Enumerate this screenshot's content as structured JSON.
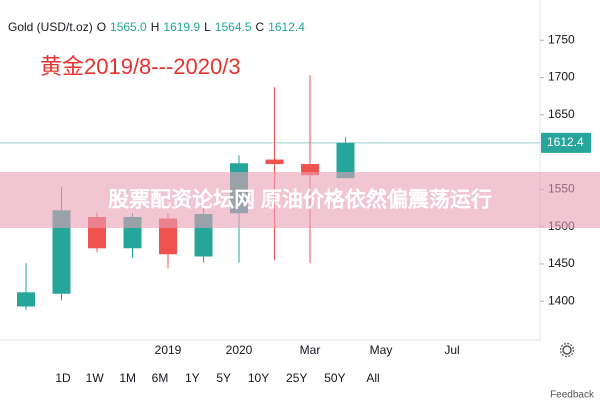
{
  "chart_data": {
    "type": "candlestick",
    "symbol": "Gold (USD/t.oz)",
    "header": {
      "o_key": "O",
      "open": "1565.0",
      "h_key": "H",
      "high": "1619.9",
      "l_key": "L",
      "low": "1564.5",
      "c_key": "C",
      "close": "1612.4"
    },
    "annotation": "黄金2019/8---2020/3",
    "watermark": "股票配资论坛网 原油价格依然偏震荡运行",
    "categories": [
      null,
      null,
      null,
      null,
      "2019",
      null,
      "2020",
      null,
      "Mar",
      null,
      "May",
      null,
      "Jul"
    ],
    "open": [
      1393,
      1410,
      1513,
      1471,
      1511,
      1460,
      1518,
      1590,
      1584,
      1565,
      null,
      null,
      null
    ],
    "high": [
      1451,
      1553,
      1519,
      1518,
      1518,
      1525,
      1596,
      1687,
      1703,
      1619.9,
      null,
      null,
      null
    ],
    "low": [
      1388,
      1401,
      1466,
      1458,
      1444,
      1452,
      1452,
      1455,
      1451,
      1564.5,
      null,
      null,
      null
    ],
    "close": [
      1412,
      1522,
      1471,
      1513,
      1463,
      1517,
      1585,
      1584,
      1569,
      1612.4,
      null,
      null,
      null
    ],
    "up_color": "#26a69a",
    "down_color": "#ef5350",
    "last_price": {
      "value": 1612.4,
      "label": "1612.4"
    },
    "ylim": [
      1348,
      1804
    ],
    "yticks": [
      1400,
      1450,
      1500,
      1550,
      1650,
      1700,
      1750
    ],
    "grid": false,
    "ranges": [
      "1D",
      "1W",
      "1M",
      "6M",
      "1Y",
      "5Y",
      "10Y",
      "25Y",
      "50Y",
      "All"
    ],
    "footer": "Feedback"
  }
}
